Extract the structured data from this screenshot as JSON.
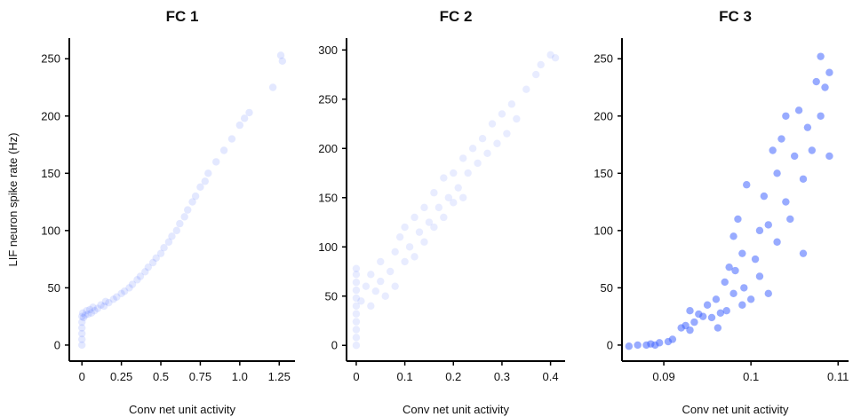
{
  "colors": {
    "points": "#4466ff",
    "axis": "#000000",
    "text": "#111111"
  },
  "chart_data": [
    {
      "type": "scatter",
      "title": "FC 1",
      "xlabel": "Conv net unit activity",
      "ylabel": "LIF neuron spike rate (Hz)",
      "xlim": [
        -0.08,
        1.35
      ],
      "ylim": [
        -14,
        268
      ],
      "xticks": [
        0,
        0.25,
        0.5,
        0.75,
        1.0,
        1.25
      ],
      "xtick_labels": [
        "0",
        "0.25",
        "0.5",
        "0.75",
        "1.0",
        "1.25"
      ],
      "yticks": [
        0,
        50,
        100,
        150,
        200,
        250
      ],
      "ytick_labels": [
        "0",
        "50",
        "100",
        "150",
        "200",
        "250"
      ],
      "point_opacity": 0.15,
      "points": [
        [
          0,
          0
        ],
        [
          0,
          5
        ],
        [
          0,
          10
        ],
        [
          0,
          15
        ],
        [
          0,
          20
        ],
        [
          0,
          25
        ],
        [
          0.005,
          28
        ],
        [
          0.01,
          24
        ],
        [
          0.02,
          26
        ],
        [
          0.03,
          30
        ],
        [
          0.04,
          27
        ],
        [
          0.05,
          31
        ],
        [
          0.06,
          28
        ],
        [
          0.07,
          33
        ],
        [
          0.08,
          30
        ],
        [
          0.1,
          32
        ],
        [
          0.12,
          35
        ],
        [
          0.14,
          34
        ],
        [
          0.15,
          38
        ],
        [
          0.17,
          37
        ],
        [
          0.2,
          40
        ],
        [
          0.22,
          42
        ],
        [
          0.25,
          45
        ],
        [
          0.27,
          47
        ],
        [
          0.3,
          50
        ],
        [
          0.32,
          53
        ],
        [
          0.35,
          57
        ],
        [
          0.37,
          60
        ],
        [
          0.4,
          64
        ],
        [
          0.42,
          68
        ],
        [
          0.45,
          72
        ],
        [
          0.47,
          76
        ],
        [
          0.5,
          80
        ],
        [
          0.52,
          85
        ],
        [
          0.55,
          90
        ],
        [
          0.57,
          95
        ],
        [
          0.6,
          100
        ],
        [
          0.62,
          106
        ],
        [
          0.65,
          112
        ],
        [
          0.67,
          118
        ],
        [
          0.7,
          125
        ],
        [
          0.72,
          130
        ],
        [
          0.75,
          138
        ],
        [
          0.78,
          143
        ],
        [
          0.8,
          150
        ],
        [
          0.85,
          160
        ],
        [
          0.9,
          170
        ],
        [
          0.95,
          180
        ],
        [
          1.0,
          192
        ],
        [
          1.03,
          198
        ],
        [
          1.06,
          203
        ],
        [
          1.21,
          225
        ],
        [
          1.26,
          253
        ],
        [
          1.27,
          248
        ]
      ]
    },
    {
      "type": "scatter",
      "title": "FC 2",
      "xlabel": "Conv net unit activity",
      "ylabel": "",
      "xlim": [
        -0.02,
        0.43
      ],
      "ylim": [
        -16,
        312
      ],
      "xticks": [
        0,
        0.1,
        0.2,
        0.3,
        0.4
      ],
      "xtick_labels": [
        "0",
        "0.1",
        "0.2",
        "0.3",
        "0.4"
      ],
      "yticks": [
        0,
        50,
        100,
        150,
        200,
        250,
        300
      ],
      "ytick_labels": [
        "0",
        "50",
        "100",
        "150",
        "200",
        "250",
        "300"
      ],
      "point_opacity": 0.12,
      "points": [
        [
          0,
          0
        ],
        [
          0,
          8
        ],
        [
          0,
          16
        ],
        [
          0,
          24
        ],
        [
          0,
          32
        ],
        [
          0,
          40
        ],
        [
          0,
          48
        ],
        [
          0,
          56
        ],
        [
          0,
          64
        ],
        [
          0,
          72
        ],
        [
          0,
          78
        ],
        [
          0.01,
          45
        ],
        [
          0.02,
          60
        ],
        [
          0.03,
          40
        ],
        [
          0.03,
          72
        ],
        [
          0.04,
          55
        ],
        [
          0.05,
          65
        ],
        [
          0.05,
          85
        ],
        [
          0.06,
          50
        ],
        [
          0.07,
          75
        ],
        [
          0.08,
          95
        ],
        [
          0.08,
          60
        ],
        [
          0.09,
          110
        ],
        [
          0.1,
          85
        ],
        [
          0.1,
          120
        ],
        [
          0.11,
          100
        ],
        [
          0.12,
          130
        ],
        [
          0.12,
          90
        ],
        [
          0.13,
          115
        ],
        [
          0.14,
          140
        ],
        [
          0.14,
          105
        ],
        [
          0.15,
          125
        ],
        [
          0.16,
          155
        ],
        [
          0.16,
          120
        ],
        [
          0.17,
          140
        ],
        [
          0.18,
          170
        ],
        [
          0.18,
          130
        ],
        [
          0.19,
          150
        ],
        [
          0.2,
          175
        ],
        [
          0.2,
          145
        ],
        [
          0.21,
          160
        ],
        [
          0.22,
          190
        ],
        [
          0.22,
          150
        ],
        [
          0.23,
          175
        ],
        [
          0.24,
          200
        ],
        [
          0.25,
          185
        ],
        [
          0.26,
          210
        ],
        [
          0.27,
          195
        ],
        [
          0.28,
          225
        ],
        [
          0.29,
          205
        ],
        [
          0.3,
          235
        ],
        [
          0.31,
          215
        ],
        [
          0.32,
          245
        ],
        [
          0.33,
          230
        ],
        [
          0.35,
          260
        ],
        [
          0.37,
          275
        ],
        [
          0.38,
          285
        ],
        [
          0.4,
          295
        ],
        [
          0.41,
          292
        ]
      ]
    },
    {
      "type": "scatter",
      "title": "FC 3",
      "xlabel": "Conv net unit activity",
      "ylabel": "",
      "xlim": [
        0.0852,
        0.1112
      ],
      "ylim": [
        -14,
        268
      ],
      "xticks": [
        0.09,
        0.1,
        0.11
      ],
      "xtick_labels": [
        "0.09",
        "0.1",
        "0.11"
      ],
      "yticks": [
        0,
        50,
        100,
        150,
        200,
        250
      ],
      "ytick_labels": [
        "0",
        "50",
        "100",
        "150",
        "200",
        "250"
      ],
      "point_opacity": 0.55,
      "points": [
        [
          0.086,
          -1
        ],
        [
          0.087,
          0
        ],
        [
          0.088,
          0
        ],
        [
          0.0885,
          1
        ],
        [
          0.089,
          0
        ],
        [
          0.0895,
          2
        ],
        [
          0.0905,
          3
        ],
        [
          0.091,
          5
        ],
        [
          0.092,
          15
        ],
        [
          0.0925,
          17
        ],
        [
          0.093,
          13
        ],
        [
          0.093,
          30
        ],
        [
          0.0935,
          20
        ],
        [
          0.094,
          27
        ],
        [
          0.0945,
          25
        ],
        [
          0.095,
          35
        ],
        [
          0.0955,
          24
        ],
        [
          0.096,
          40
        ],
        [
          0.0962,
          15
        ],
        [
          0.0965,
          28
        ],
        [
          0.097,
          55
        ],
        [
          0.0972,
          30
        ],
        [
          0.0975,
          68
        ],
        [
          0.098,
          45
        ],
        [
          0.098,
          95
        ],
        [
          0.0982,
          65
        ],
        [
          0.0985,
          110
        ],
        [
          0.099,
          35
        ],
        [
          0.099,
          80
        ],
        [
          0.0992,
          50
        ],
        [
          0.0995,
          140
        ],
        [
          0.1,
          40
        ],
        [
          0.1005,
          75
        ],
        [
          0.101,
          100
        ],
        [
          0.101,
          60
        ],
        [
          0.1015,
          130
        ],
        [
          0.102,
          45
        ],
        [
          0.102,
          105
        ],
        [
          0.1025,
          170
        ],
        [
          0.103,
          90
        ],
        [
          0.103,
          150
        ],
        [
          0.1035,
          180
        ],
        [
          0.104,
          125
        ],
        [
          0.104,
          200
        ],
        [
          0.1045,
          110
        ],
        [
          0.105,
          165
        ],
        [
          0.1055,
          205
        ],
        [
          0.106,
          80
        ],
        [
          0.106,
          145
        ],
        [
          0.1065,
          190
        ],
        [
          0.107,
          170
        ],
        [
          0.1075,
          230
        ],
        [
          0.108,
          252
        ],
        [
          0.108,
          200
        ],
        [
          0.1085,
          225
        ],
        [
          0.109,
          165
        ],
        [
          0.109,
          238
        ]
      ]
    }
  ]
}
